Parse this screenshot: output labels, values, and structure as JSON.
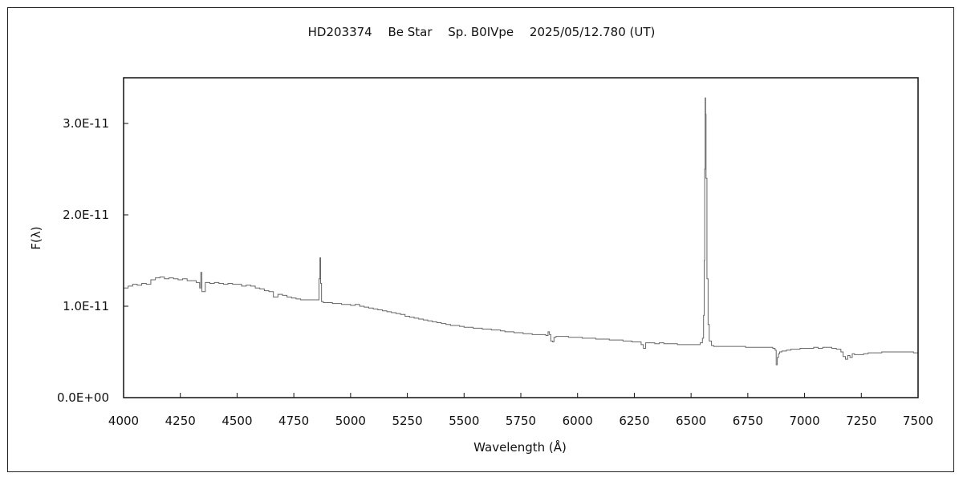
{
  "chart_data": {
    "type": "line",
    "title": "HD203374　 Be Star 　Sp. B0IVpe 　2025/05/12.780 (UT)",
    "xlabel": "Wavelength (Å)",
    "ylabel": "F(λ)",
    "xlim": [
      4000,
      7500
    ],
    "ylim": [
      0,
      3.5e-11
    ],
    "x_ticks": [
      4000,
      4250,
      4500,
      4750,
      5000,
      5250,
      5500,
      5750,
      6000,
      6250,
      6500,
      6750,
      7000,
      7250,
      7500
    ],
    "x_tick_labels": [
      "4000",
      "4250",
      "4500",
      "4750",
      "5000",
      "5250",
      "5500",
      "5750",
      "6000",
      "6250",
      "6500",
      "6750",
      "7000",
      "7250",
      "7500"
    ],
    "y_ticks": [
      0,
      1e-11,
      2e-11,
      3e-11
    ],
    "y_tick_labels": [
      "0.0E+00",
      "1.0E-11",
      "2.0E-11",
      "3.0E-11"
    ],
    "grid": false,
    "legend": "none",
    "line_color": "#666666",
    "series": [
      {
        "x": [
          4000,
          4020,
          4040,
          4060,
          4080,
          4100,
          4120,
          4140,
          4160,
          4180,
          4200,
          4220,
          4240,
          4260,
          4280,
          4300,
          4320,
          4335,
          4340,
          4345,
          4360,
          4380,
          4400,
          4420,
          4440,
          4460,
          4480,
          4500,
          4520,
          4540,
          4560,
          4580,
          4600,
          4620,
          4640,
          4660,
          4680,
          4700,
          4720,
          4740,
          4760,
          4780,
          4800,
          4820,
          4840,
          4855,
          4861,
          4865,
          4868,
          4872,
          4880,
          4900,
          4920,
          4940,
          4960,
          4980,
          5000,
          5020,
          5040,
          5060,
          5080,
          5100,
          5120,
          5140,
          5160,
          5180,
          5200,
          5220,
          5240,
          5260,
          5280,
          5300,
          5320,
          5340,
          5360,
          5380,
          5400,
          5420,
          5440,
          5460,
          5480,
          5500,
          5520,
          5540,
          5560,
          5580,
          5600,
          5620,
          5640,
          5660,
          5680,
          5700,
          5720,
          5740,
          5760,
          5780,
          5800,
          5820,
          5840,
          5860,
          5870,
          5876,
          5882,
          5890,
          5896,
          5905,
          5920,
          5940,
          5960,
          5980,
          6000,
          6020,
          6040,
          6060,
          6080,
          6100,
          6120,
          6140,
          6160,
          6180,
          6200,
          6220,
          6240,
          6260,
          6280,
          6290,
          6300,
          6320,
          6340,
          6360,
          6380,
          6400,
          6420,
          6440,
          6460,
          6480,
          6500,
          6520,
          6540,
          6550,
          6555,
          6558,
          6560,
          6562,
          6564,
          6566,
          6570,
          6575,
          6580,
          6590,
          6600,
          6620,
          6640,
          6660,
          6680,
          6700,
          6720,
          6740,
          6760,
          6780,
          6800,
          6820,
          6840,
          6860,
          6870,
          6875,
          6880,
          6885,
          6890,
          6900,
          6920,
          6940,
          6960,
          6980,
          7000,
          7020,
          7040,
          7060,
          7080,
          7100,
          7120,
          7140,
          7160,
          7170,
          7180,
          7190,
          7200,
          7210,
          7220,
          7240,
          7260,
          7280,
          7300,
          7320,
          7340,
          7360,
          7380,
          7400,
          7420,
          7440,
          7460,
          7480,
          7500
        ],
        "values": [
          1.2e-11,
          1.22e-11,
          1.24e-11,
          1.23e-11,
          1.25e-11,
          1.24e-11,
          1.29e-11,
          1.31e-11,
          1.32e-11,
          1.3e-11,
          1.31e-11,
          1.3e-11,
          1.29e-11,
          1.3e-11,
          1.28e-11,
          1.28e-11,
          1.26e-11,
          1.2e-11,
          1.37e-11,
          1.16e-11,
          1.26e-11,
          1.25e-11,
          1.26e-11,
          1.25e-11,
          1.24e-11,
          1.25e-11,
          1.24e-11,
          1.24e-11,
          1.22e-11,
          1.23e-11,
          1.22e-11,
          1.2e-11,
          1.19e-11,
          1.17e-11,
          1.16e-11,
          1.1e-11,
          1.13e-11,
          1.12e-11,
          1.1e-11,
          1.09e-11,
          1.08e-11,
          1.07e-11,
          1.07e-11,
          1.07e-11,
          1.07e-11,
          1.07e-11,
          1.3e-11,
          1.53e-11,
          1.25e-11,
          1.05e-11,
          1.04e-11,
          1.04e-11,
          1.03e-11,
          1.03e-11,
          1.02e-11,
          1.02e-11,
          1.01e-11,
          1.02e-11,
          1e-11,
          9.9e-12,
          9.8e-12,
          9.7e-12,
          9.6e-12,
          9.5e-12,
          9.4e-12,
          9.3e-12,
          9.2e-12,
          9.1e-12,
          8.9e-12,
          8.8e-12,
          8.7e-12,
          8.6e-12,
          8.5e-12,
          8.4e-12,
          8.3e-12,
          8.2e-12,
          8.1e-12,
          8e-12,
          7.9e-12,
          7.9e-12,
          7.8e-12,
          7.7e-12,
          7.7e-12,
          7.6e-12,
          7.6e-12,
          7.5e-12,
          7.5e-12,
          7.4e-12,
          7.4e-12,
          7.3e-12,
          7.2e-12,
          7.2e-12,
          7.1e-12,
          7.1e-12,
          7e-12,
          7e-12,
          6.9e-12,
          6.9e-12,
          6.9e-12,
          6.8e-12,
          7.2e-12,
          6.9e-12,
          6.2e-12,
          6.1e-12,
          6.6e-12,
          6.7e-12,
          6.7e-12,
          6.7e-12,
          6.6e-12,
          6.6e-12,
          6.6e-12,
          6.5e-12,
          6.5e-12,
          6.5e-12,
          6.4e-12,
          6.4e-12,
          6.4e-12,
          6.3e-12,
          6.3e-12,
          6.3e-12,
          6.2e-12,
          6.2e-12,
          6.1e-12,
          6.1e-12,
          5.8e-12,
          5.4e-12,
          6e-12,
          6e-12,
          5.9e-12,
          6e-12,
          5.9e-12,
          5.9e-12,
          5.9e-12,
          5.8e-12,
          5.8e-12,
          5.8e-12,
          5.8e-12,
          5.8e-12,
          6e-12,
          6.5e-12,
          9e-12,
          1.5e-11,
          2.5e-11,
          3.28e-11,
          3.1e-11,
          2.4e-11,
          1.3e-11,
          8e-12,
          6.2e-12,
          5.7e-12,
          5.6e-12,
          5.6e-12,
          5.6e-12,
          5.6e-12,
          5.6e-12,
          5.6e-12,
          5.6e-12,
          5.5e-12,
          5.5e-12,
          5.5e-12,
          5.5e-12,
          5.5e-12,
          5.5e-12,
          5.4e-12,
          5.2e-12,
          3.6e-12,
          4.4e-12,
          4.8e-12,
          5e-12,
          5.1e-12,
          5.2e-12,
          5.3e-12,
          5.3e-12,
          5.4e-12,
          5.4e-12,
          5.4e-12,
          5.5e-12,
          5.4e-12,
          5.5e-12,
          5.5e-12,
          5.4e-12,
          5.3e-12,
          5e-12,
          4.5e-12,
          4.2e-12,
          4.6e-12,
          4.4e-12,
          4.8e-12,
          4.7e-12,
          4.7e-12,
          4.8e-12,
          4.9e-12,
          4.9e-12,
          4.9e-12,
          5e-12,
          5e-12,
          5e-12,
          5e-12,
          5e-12,
          5e-12,
          5e-12,
          4.9e-12,
          4.9e-12
        ]
      }
    ]
  }
}
